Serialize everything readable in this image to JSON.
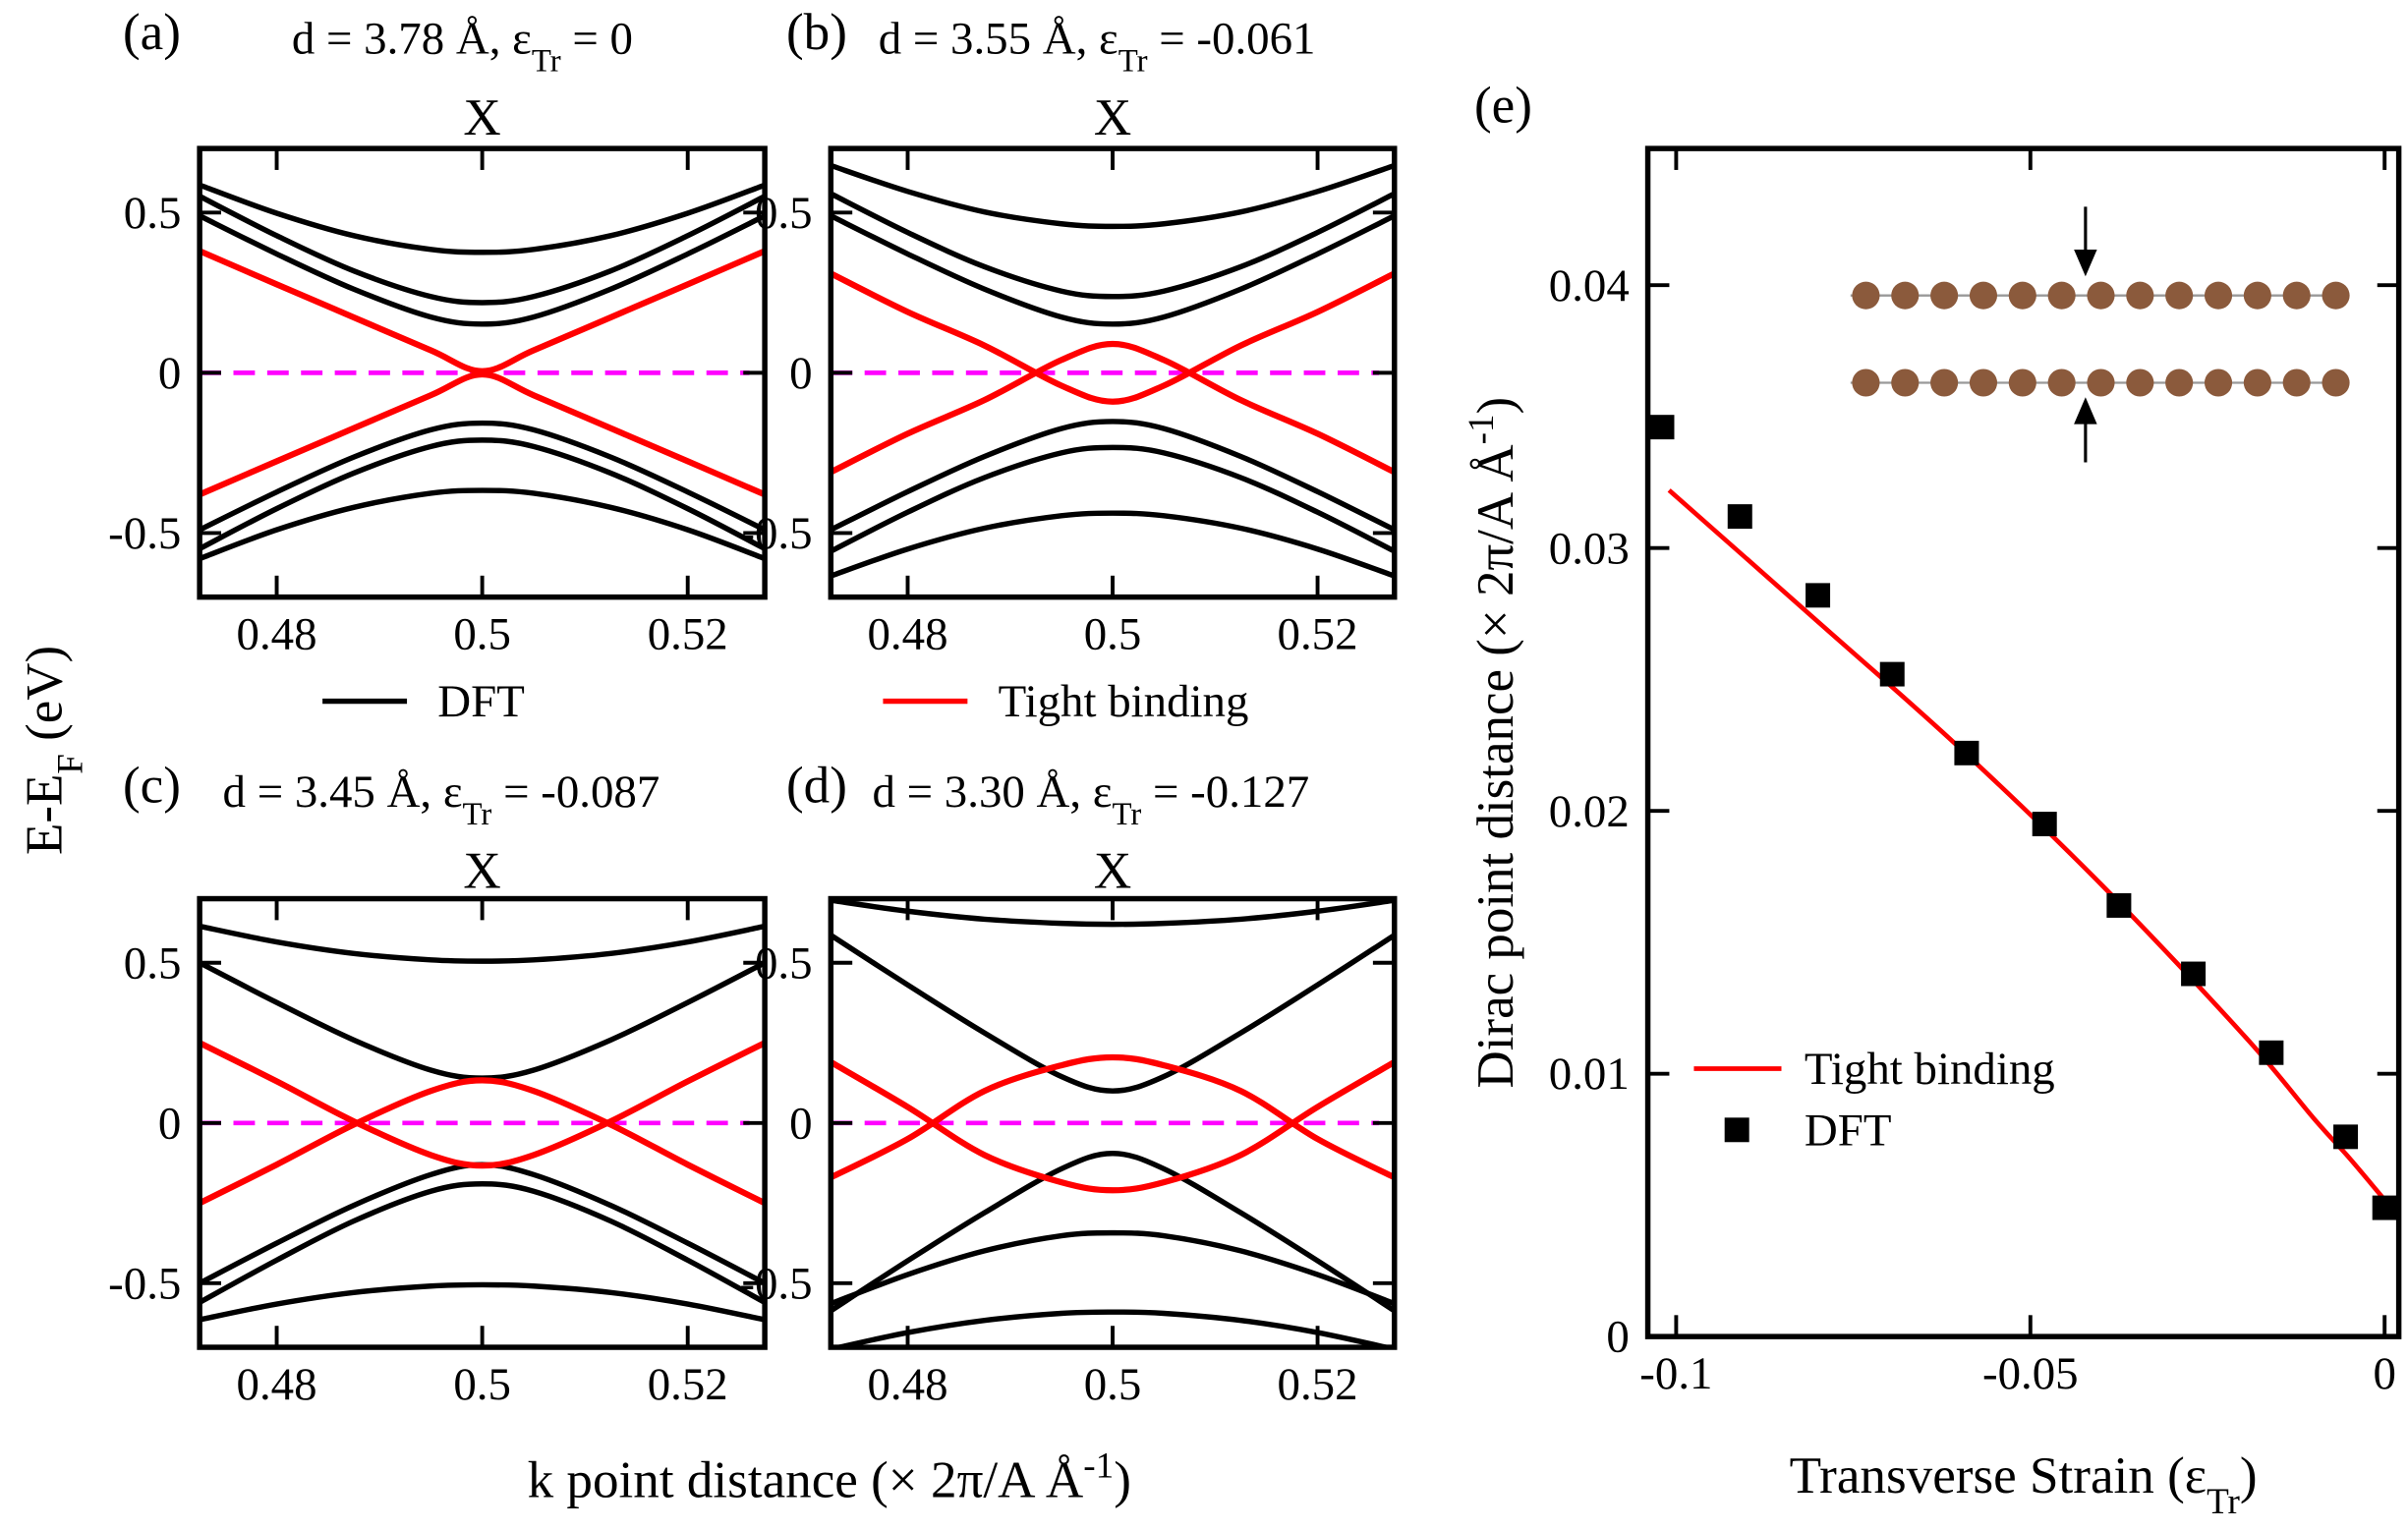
{
  "chart_data": [
    {
      "type": "line",
      "label": "(a)",
      "title": [
        "d = 3.78 Å, ε",
        {
          "sub": "Tr"
        },
        " = 0"
      ],
      "top_label": "X",
      "x": [
        0.4725,
        0.48,
        0.4875,
        0.495,
        0.5,
        0.505,
        0.5125,
        0.52,
        0.5275
      ],
      "series": [
        {
          "color": "#000000",
          "values": [
            0.586,
            0.498,
            0.428,
            0.385,
            0.376,
            0.385,
            0.428,
            0.498,
            0.586
          ]
        },
        {
          "color": "#000000",
          "values": [
            0.551,
            0.428,
            0.318,
            0.238,
            0.219,
            0.238,
            0.318,
            0.428,
            0.551
          ]
        },
        {
          "color": "#000000",
          "values": [
            0.49,
            0.371,
            0.261,
            0.174,
            0.152,
            0.174,
            0.261,
            0.371,
            0.49
          ]
        },
        {
          "color": "#000000",
          "values": [
            -0.49,
            -0.372,
            -0.263,
            -0.178,
            -0.157,
            -0.178,
            -0.263,
            -0.372,
            -0.49
          ]
        },
        {
          "color": "#000000",
          "values": [
            -0.549,
            -0.424,
            -0.313,
            -0.23,
            -0.21,
            -0.23,
            -0.313,
            -0.424,
            -0.549
          ]
        },
        {
          "color": "#000000",
          "values": [
            -0.58,
            -0.49,
            -0.42,
            -0.376,
            -0.367,
            -0.376,
            -0.42,
            -0.49,
            -0.58
          ]
        },
        {
          "color": "#ff0000",
          "values": [
            0.38,
            0.276,
            0.173,
            0.07,
            0.005,
            0.07,
            0.173,
            0.276,
            0.38
          ]
        },
        {
          "color": "#ff0000",
          "values": [
            -0.38,
            -0.276,
            -0.173,
            -0.07,
            -0.005,
            -0.07,
            -0.173,
            -0.276,
            -0.38
          ]
        }
      ],
      "fermi_level": 0,
      "fermi_color": "#ff00ff",
      "xlim": [
        0.4725,
        0.5275
      ],
      "ylim": [
        -0.7,
        0.7
      ],
      "xticks": [
        0.48,
        0.5,
        0.52
      ],
      "yticks": [
        -0.5,
        0,
        0.5
      ],
      "legend": {
        "name": "DFT",
        "color": "#000000"
      }
    },
    {
      "type": "line",
      "label": "(b)",
      "title": [
        "d = 3.55 Å, ε",
        {
          "sub": "Tr"
        },
        " = -0.061"
      ],
      "top_label": "X",
      "x": [
        0.4725,
        0.48,
        0.4875,
        0.495,
        0.5,
        0.505,
        0.5125,
        0.52,
        0.5275
      ],
      "series": [
        {
          "color": "#000000",
          "values": [
            0.647,
            0.566,
            0.502,
            0.465,
            0.457,
            0.465,
            0.502,
            0.566,
            0.647
          ]
        },
        {
          "color": "#000000",
          "values": [
            0.559,
            0.438,
            0.331,
            0.255,
            0.238,
            0.255,
            0.331,
            0.438,
            0.559
          ]
        },
        {
          "color": "#000000",
          "values": [
            0.49,
            0.371,
            0.261,
            0.174,
            0.152,
            0.174,
            0.261,
            0.371,
            0.49
          ]
        },
        {
          "color": "#000000",
          "values": [
            -0.49,
            -0.371,
            -0.261,
            -0.174,
            -0.152,
            -0.174,
            -0.261,
            -0.371,
            -0.49
          ]
        },
        {
          "color": "#000000",
          "values": [
            -0.557,
            -0.435,
            -0.327,
            -0.25,
            -0.233,
            -0.25,
            -0.327,
            -0.435,
            -0.557
          ]
        },
        {
          "color": "#000000",
          "values": [
            -0.634,
            -0.55,
            -0.485,
            -0.446,
            -0.438,
            -0.446,
            -0.485,
            -0.55,
            -0.634
          ]
        },
        {
          "color": "#ff0000",
          "values": [
            -0.31,
            -0.19,
            -0.085,
            0.04,
            0.09,
            0.04,
            -0.085,
            -0.19,
            -0.31
          ]
        },
        {
          "color": "#ff0000",
          "values": [
            0.31,
            0.19,
            0.085,
            -0.04,
            -0.09,
            -0.04,
            0.085,
            0.19,
            0.31
          ]
        }
      ],
      "fermi_level": 0,
      "fermi_color": "#ff00ff",
      "xlim": [
        0.4725,
        0.5275
      ],
      "ylim": [
        -0.7,
        0.7
      ],
      "xticks": [
        0.48,
        0.5,
        0.52
      ],
      "yticks": [
        -0.5,
        0,
        0.5
      ],
      "legend": {
        "name": "Tight binding",
        "color": "#ff0000"
      }
    },
    {
      "type": "line",
      "label": "(c)",
      "title": [
        "d = 3.45 Å, ε",
        {
          "sub": "Tr"
        },
        " = -0.087"
      ],
      "top_label": "X",
      "x": [
        0.4725,
        0.48,
        0.4875,
        0.495,
        0.5,
        0.505,
        0.5125,
        0.52,
        0.5275
      ],
      "series": [
        {
          "color": "#000000",
          "values": [
            0.614,
            0.565,
            0.529,
            0.509,
            0.505,
            0.509,
            0.529,
            0.565,
            0.614
          ]
        },
        {
          "color": "#000000",
          "values": [
            0.5,
            0.376,
            0.259,
            0.165,
            0.14,
            0.165,
            0.259,
            0.376,
            0.5
          ]
        },
        {
          "color": "#000000",
          "values": [
            -0.5,
            -0.375,
            -0.257,
            -0.161,
            -0.13,
            -0.161,
            -0.257,
            -0.375,
            -0.5
          ]
        },
        {
          "color": "#000000",
          "values": [
            -0.56,
            -0.428,
            -0.306,
            -0.213,
            -0.19,
            -0.213,
            -0.306,
            -0.428,
            -0.56
          ]
        },
        {
          "color": "#000000",
          "values": [
            -0.614,
            -0.565,
            -0.529,
            -0.509,
            -0.505,
            -0.509,
            -0.529,
            -0.565,
            -0.614
          ]
        },
        {
          "color": "#ff0000",
          "values": [
            -0.25,
            -0.13,
            -0.005,
            0.1,
            0.133,
            0.1,
            -0.005,
            -0.13,
            -0.25
          ]
        },
        {
          "color": "#ff0000",
          "values": [
            0.25,
            0.13,
            0.005,
            -0.1,
            -0.133,
            -0.1,
            0.005,
            0.13,
            0.25
          ]
        }
      ],
      "fermi_level": 0,
      "fermi_color": "#ff00ff",
      "xlim": [
        0.4725,
        0.5275
      ],
      "ylim": [
        -0.7,
        0.7
      ],
      "xticks": [
        0.48,
        0.5,
        0.52
      ],
      "yticks": [
        -0.5,
        0,
        0.5
      ]
    },
    {
      "type": "line",
      "label": "(d)",
      "title": [
        "d = 3.30 Å, ε",
        {
          "sub": "Tr"
        },
        " = -0.127"
      ],
      "top_label": "X",
      "x": [
        0.4725,
        0.48,
        0.4875,
        0.495,
        0.5,
        0.505,
        0.5125,
        0.52,
        0.5275
      ],
      "series": [
        {
          "color": "#000000",
          "values": [
            0.695,
            0.661,
            0.636,
            0.623,
            0.62,
            0.623,
            0.636,
            0.661,
            0.695
          ]
        },
        {
          "color": "#000000",
          "values": [
            0.586,
            0.431,
            0.281,
            0.145,
            0.1,
            0.145,
            0.281,
            0.431,
            0.586
          ]
        },
        {
          "color": "#000000",
          "values": [
            -0.586,
            -0.43,
            -0.28,
            -0.143,
            -0.095,
            -0.143,
            -0.28,
            -0.43,
            -0.586
          ]
        },
        {
          "color": "#000000",
          "values": [
            -0.564,
            -0.473,
            -0.399,
            -0.352,
            -0.343,
            -0.352,
            -0.399,
            -0.473,
            -0.564
          ]
        },
        {
          "color": "#000000",
          "values": [
            -0.706,
            -0.654,
            -0.616,
            -0.594,
            -0.59,
            -0.594,
            -0.616,
            -0.654,
            -0.706
          ]
        },
        {
          "color": "#ff0000",
          "values": [
            -0.17,
            -0.05,
            0.1,
            0.18,
            0.205,
            0.18,
            0.1,
            -0.05,
            -0.17
          ]
        },
        {
          "color": "#ff0000",
          "values": [
            0.19,
            0.05,
            -0.1,
            -0.185,
            -0.21,
            -0.185,
            -0.1,
            0.05,
            0.19
          ]
        }
      ],
      "fermi_level": 0,
      "fermi_color": "#ff00ff",
      "xlim": [
        0.4725,
        0.5275
      ],
      "ylim": [
        -0.7,
        0.7
      ],
      "xticks": [
        0.48,
        0.5,
        0.52
      ],
      "yticks": [
        -0.5,
        0,
        0.5
      ]
    },
    {
      "type": "scatter",
      "label": "(e)",
      "xlabel": [
        "Transverse Strain (ε",
        {
          "sub": "Tr"
        },
        ")"
      ],
      "ylabel": [
        "Dirac point distance (× 2π/A Å",
        {
          "sup": "-1"
        },
        ")"
      ],
      "series": [
        {
          "name": "Tight binding",
          "color": "#ff0000",
          "kind": "line",
          "x": [
            -0.101,
            -0.08,
            -0.06,
            -0.04,
            -0.02,
            -0.01,
            -0.005,
            0
          ],
          "values": [
            0.0322,
            0.0272,
            0.0224,
            0.0172,
            0.0115,
            0.0083,
            0.0068,
            0.0052
          ]
        },
        {
          "name": "DFT",
          "color": "#000000",
          "kind": "marker",
          "x": [
            -0.102,
            -0.091,
            -0.08,
            -0.0695,
            -0.059,
            -0.048,
            -0.0375,
            -0.027,
            -0.016,
            -0.0055,
            0
          ],
          "values": [
            0.0346,
            0.0312,
            0.0282,
            0.0252,
            0.0222,
            0.0195,
            0.0164,
            0.0138,
            0.0108,
            0.0076,
            0.0049
          ]
        }
      ],
      "xlim": [
        -0.104,
        0.002
      ],
      "ylim": [
        0,
        0.0452
      ],
      "xticks": [
        -0.1,
        -0.05,
        0
      ],
      "yticks": [
        0,
        0.01,
        0.02,
        0.03,
        0.04
      ]
    }
  ],
  "shared_ylabel": [
    "E-E",
    {
      "sub": "F"
    },
    " (eV)"
  ],
  "shared_xlabel": [
    "k point distance (× 2π/A Å",
    {
      "sup": "-1"
    },
    ")"
  ]
}
